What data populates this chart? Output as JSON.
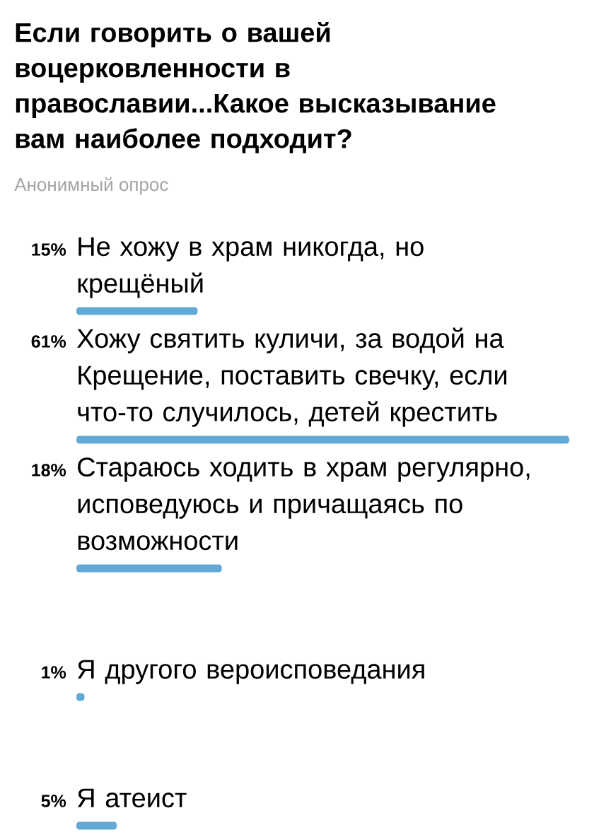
{
  "chart_data": {
    "type": "bar",
    "orientation": "horizontal",
    "title": "Если говорить о вашей воцерковленности в православии...Какое высказывание вам наиболее подходит?",
    "subtitle": "Анонимный опрос",
    "categories": [
      "Не хожу в храм никогда, но крещёный",
      "Хожу святить куличи, за водой на Крещение, поставить свечку, если что-то случилось, детей крестить",
      "Стараюсь ходить в храм регулярно, исповедуюсь и причащаясь по возможности",
      "Я другого вероисповедания",
      "Я атеист"
    ],
    "values": [
      15,
      61,
      18,
      1,
      5
    ],
    "value_labels": [
      "15%",
      "61%",
      "18%",
      "1%",
      "5%"
    ],
    "color": "#62a9d5"
  }
}
